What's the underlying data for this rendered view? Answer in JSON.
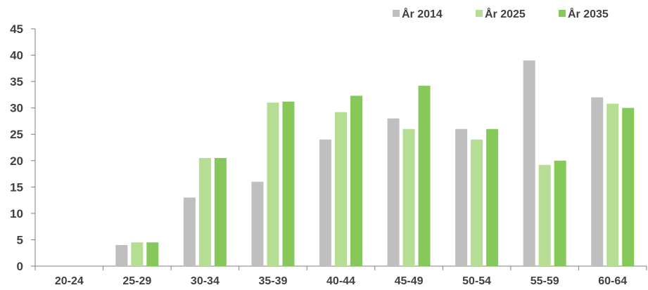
{
  "chart_data": {
    "type": "bar",
    "title": "",
    "xlabel": "",
    "ylabel": "",
    "ylim": [
      0,
      45
    ],
    "yticks": [
      0,
      5,
      10,
      15,
      20,
      25,
      30,
      35,
      40,
      45
    ],
    "grid": false,
    "legend": "top-right",
    "categories": [
      "20-24",
      "25-29",
      "30-34",
      "35-39",
      "40-44",
      "45-49",
      "50-54",
      "55-59",
      "60-64"
    ],
    "series": [
      {
        "name": "År 2014",
        "color": "#bfbfbf",
        "values": [
          0,
          4,
          13,
          16,
          24,
          28,
          26,
          39,
          32
        ]
      },
      {
        "name": "År 2025",
        "color": "#b5dd94",
        "values": [
          0,
          4.5,
          20.5,
          31,
          29.2,
          26,
          24,
          19.2,
          30.8
        ]
      },
      {
        "name": "År 2035",
        "color": "#86c95a",
        "values": [
          0,
          4.5,
          20.5,
          31.2,
          32.3,
          34.2,
          26,
          20,
          30
        ]
      }
    ]
  }
}
